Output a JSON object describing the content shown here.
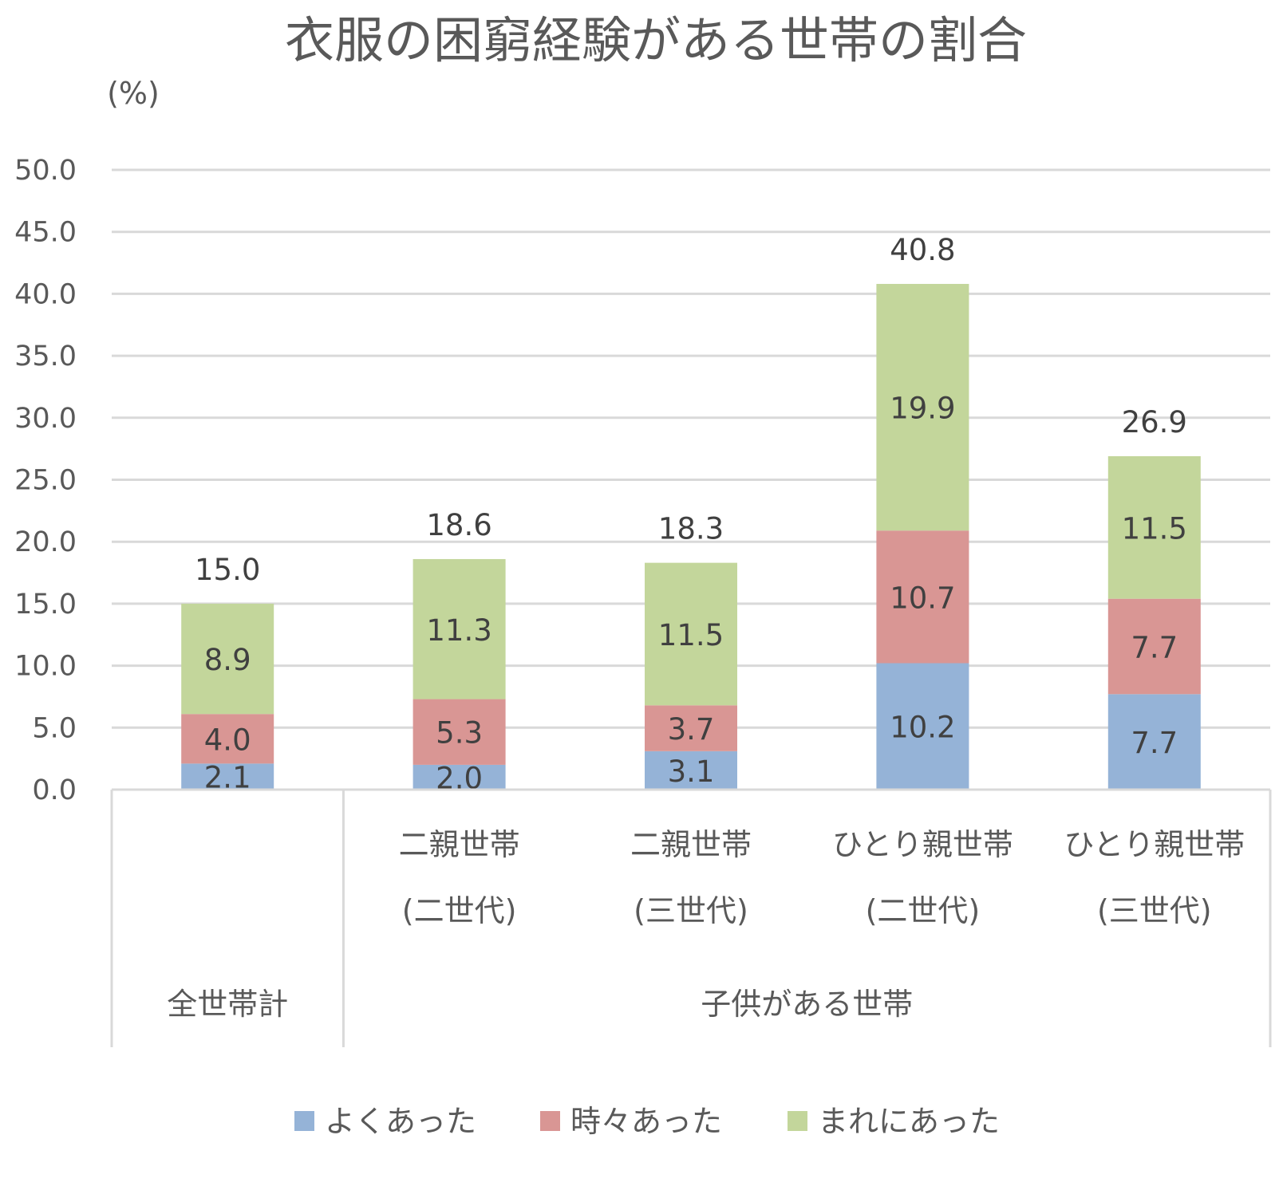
{
  "chart_data": {
    "type": "bar",
    "stacked": true,
    "title": "衣服の困窮経験がある世帯の割合",
    "y_unit_label": "(%)",
    "ylim": [
      0,
      50
    ],
    "y_ticks": [
      "0.0",
      "5.0",
      "10.0",
      "15.0",
      "20.0",
      "25.0",
      "30.0",
      "35.0",
      "40.0",
      "45.0",
      "50.0"
    ],
    "grid": true,
    "legend_position": "bottom",
    "categories": [
      {
        "line1": "",
        "line2": "",
        "group": "全世帯計"
      },
      {
        "line1": "二親世帯",
        "line2": "(二世代)",
        "group": "子供がある世帯"
      },
      {
        "line1": "二親世帯",
        "line2": "(三世代)",
        "group": "子供がある世帯"
      },
      {
        "line1": "ひとり親世帯",
        "line2": "(二世代)",
        "group": "子供がある世帯"
      },
      {
        "line1": "ひとり親世帯",
        "line2": "(三世代)",
        "group": "子供がある世帯"
      }
    ],
    "groups": [
      "全世帯計",
      "子供がある世帯"
    ],
    "series": [
      {
        "name": "よくあった",
        "color": "#95b3d7",
        "values": [
          2.1,
          2.0,
          3.1,
          10.2,
          7.7
        ]
      },
      {
        "name": "時々あった",
        "color": "#d99694",
        "values": [
          4.0,
          5.3,
          3.7,
          10.7,
          7.7
        ]
      },
      {
        "name": "まれにあった",
        "color": "#c3d69b",
        "values": [
          8.9,
          11.3,
          11.5,
          19.9,
          11.5
        ]
      }
    ],
    "totals": [
      15.0,
      18.6,
      18.3,
      40.8,
      26.9
    ]
  }
}
